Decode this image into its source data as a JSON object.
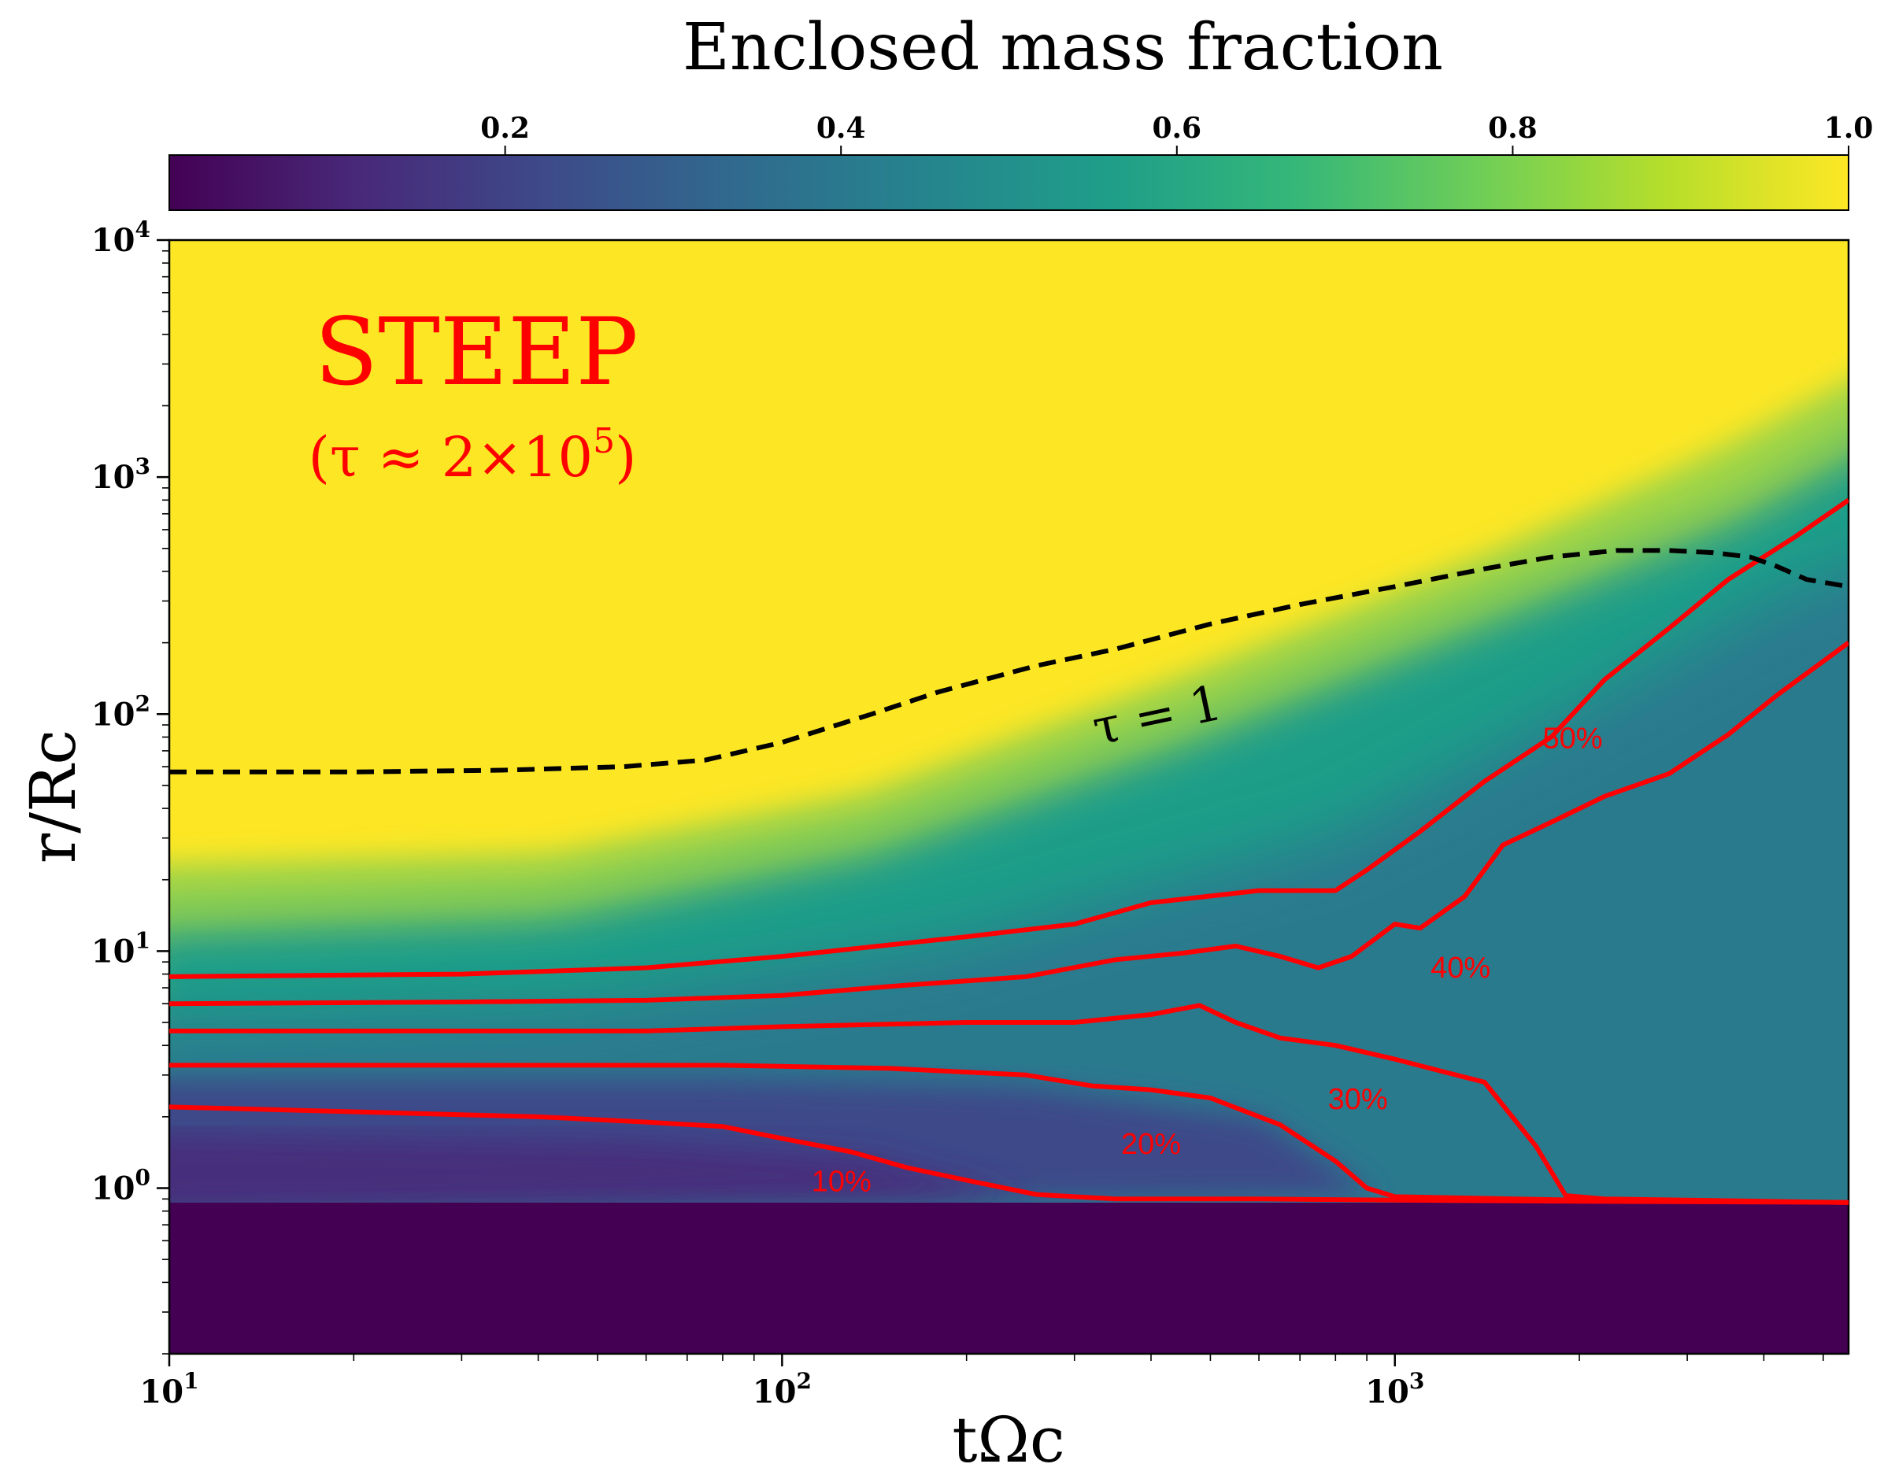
{
  "chart_data": {
    "type": "heatmap",
    "title": "Enclosed mass fraction",
    "xlabel": "tΩc",
    "ylabel": "r/Rc",
    "xscale": "log",
    "yscale": "log",
    "xlim": [
      10,
      5500
    ],
    "ylim": [
      0.2,
      10000
    ],
    "colorbar": {
      "label": "Enclosed mass fraction",
      "range": [
        0.0,
        1.0
      ],
      "ticks": [
        0.2,
        0.4,
        0.6,
        0.8,
        1.0
      ],
      "tick_labels": [
        "0.2",
        "0.4",
        "0.6",
        "0.8",
        "1.0"
      ],
      "colormap": "viridis"
    },
    "x_tick_labels": [
      {
        "value": 10,
        "base": "10",
        "exp": "1"
      },
      {
        "value": 100,
        "base": "10",
        "exp": "2"
      },
      {
        "value": 1000,
        "base": "10",
        "exp": "3"
      }
    ],
    "y_tick_labels": [
      {
        "value": 1,
        "base": "10",
        "exp": "0"
      },
      {
        "value": 10,
        "base": "10",
        "exp": "1"
      },
      {
        "value": 100,
        "base": "10",
        "exp": "2"
      },
      {
        "value": 1000,
        "base": "10",
        "exp": "3"
      },
      {
        "value": 10000,
        "base": "10",
        "exp": "4"
      }
    ],
    "annotations": {
      "model": "STEEP",
      "tau_value_prefix": "(τ ≈ 2×10",
      "tau_value_exp": "5",
      "tau_value_suffix": ")",
      "tau_line_label": "τ = 1"
    },
    "tau_one_line": {
      "style": "dashed",
      "color": "#000000",
      "points": [
        [
          10,
          57
        ],
        [
          20,
          57
        ],
        [
          35,
          58
        ],
        [
          55,
          60
        ],
        [
          75,
          64
        ],
        [
          100,
          76
        ],
        [
          140,
          100
        ],
        [
          180,
          124
        ],
        [
          260,
          160
        ],
        [
          350,
          188
        ],
        [
          500,
          240
        ],
        [
          700,
          290
        ],
        [
          1000,
          345
        ],
        [
          1400,
          410
        ],
        [
          1800,
          460
        ],
        [
          2300,
          490
        ],
        [
          2800,
          490
        ],
        [
          3300,
          480
        ],
        [
          3800,
          460
        ],
        [
          4200,
          420
        ],
        [
          4700,
          370
        ],
        [
          5500,
          345
        ]
      ]
    },
    "contours": [
      {
        "label": "10%",
        "label_at": [
          125,
          1.08
        ],
        "points": [
          [
            10,
            2.2
          ],
          [
            20,
            2.1
          ],
          [
            40,
            2.0
          ],
          [
            60,
            1.9
          ],
          [
            80,
            1.82
          ],
          [
            100,
            1.62
          ],
          [
            130,
            1.42
          ],
          [
            160,
            1.22
          ],
          [
            200,
            1.08
          ],
          [
            260,
            0.94
          ],
          [
            350,
            0.9
          ],
          [
            600,
            0.9
          ],
          [
            1000,
            0.89
          ],
          [
            2000,
            0.88
          ],
          [
            5500,
            0.87
          ]
        ]
      },
      {
        "label": "20%",
        "label_at": [
          400,
          1.55
        ],
        "points": [
          [
            10,
            3.3
          ],
          [
            20,
            3.3
          ],
          [
            40,
            3.3
          ],
          [
            80,
            3.3
          ],
          [
            150,
            3.2
          ],
          [
            250,
            3.0
          ],
          [
            320,
            2.7
          ],
          [
            400,
            2.6
          ],
          [
            500,
            2.4
          ],
          [
            650,
            1.85
          ],
          [
            800,
            1.3
          ],
          [
            900,
            1.0
          ],
          [
            1000,
            0.92
          ],
          [
            2000,
            0.89
          ],
          [
            5500,
            0.87
          ]
        ]
      },
      {
        "label": "30%",
        "label_at": [
          870,
          2.4
        ],
        "points": [
          [
            10,
            4.6
          ],
          [
            30,
            4.6
          ],
          [
            60,
            4.6
          ],
          [
            100,
            4.8
          ],
          [
            200,
            5.0
          ],
          [
            300,
            5.0
          ],
          [
            400,
            5.4
          ],
          [
            480,
            5.9
          ],
          [
            550,
            5.0
          ],
          [
            650,
            4.3
          ],
          [
            800,
            4.0
          ],
          [
            1000,
            3.5
          ],
          [
            1200,
            3.1
          ],
          [
            1400,
            2.8
          ],
          [
            1700,
            1.5
          ],
          [
            1900,
            0.93
          ],
          [
            2200,
            0.9
          ],
          [
            5500,
            0.87
          ]
        ]
      },
      {
        "label": "40%",
        "label_at": [
          1280,
          8.6
        ],
        "points": [
          [
            10,
            6.0
          ],
          [
            30,
            6.1
          ],
          [
            60,
            6.2
          ],
          [
            100,
            6.5
          ],
          [
            150,
            7.1
          ],
          [
            250,
            7.8
          ],
          [
            350,
            9.2
          ],
          [
            450,
            9.8
          ],
          [
            550,
            10.5
          ],
          [
            650,
            9.5
          ],
          [
            750,
            8.5
          ],
          [
            850,
            9.5
          ],
          [
            1000,
            13.0
          ],
          [
            1100,
            12.5
          ],
          [
            1300,
            17.0
          ],
          [
            1500,
            28.0
          ],
          [
            1800,
            35.0
          ],
          [
            2200,
            45.0
          ],
          [
            2800,
            56.0
          ],
          [
            3500,
            82.0
          ],
          [
            4200,
            120.0
          ],
          [
            5500,
            200.0
          ]
        ]
      },
      {
        "label": "50%",
        "label_at": [
          1950,
          80
        ],
        "points": [
          [
            10,
            7.8
          ],
          [
            30,
            8.0
          ],
          [
            60,
            8.5
          ],
          [
            100,
            9.5
          ],
          [
            200,
            11.5
          ],
          [
            300,
            13.0
          ],
          [
            400,
            16.0
          ],
          [
            600,
            18.0
          ],
          [
            800,
            18.0
          ],
          [
            900,
            22.0
          ],
          [
            1100,
            32.0
          ],
          [
            1400,
            52.0
          ],
          [
            1800,
            80.0
          ],
          [
            2200,
            140.0
          ],
          [
            2800,
            230.0
          ],
          [
            3500,
            370.0
          ],
          [
            4500,
            560.0
          ],
          [
            5500,
            800.0
          ]
        ]
      }
    ],
    "colors": {
      "contour": "#ff0000",
      "annotation": "#ff0000",
      "viridis": [
        "#440154",
        "#482878",
        "#3e4989",
        "#31688e",
        "#26828e",
        "#1f9e89",
        "#35b779",
        "#6ece58",
        "#b5de2b",
        "#fde725"
      ]
    }
  }
}
